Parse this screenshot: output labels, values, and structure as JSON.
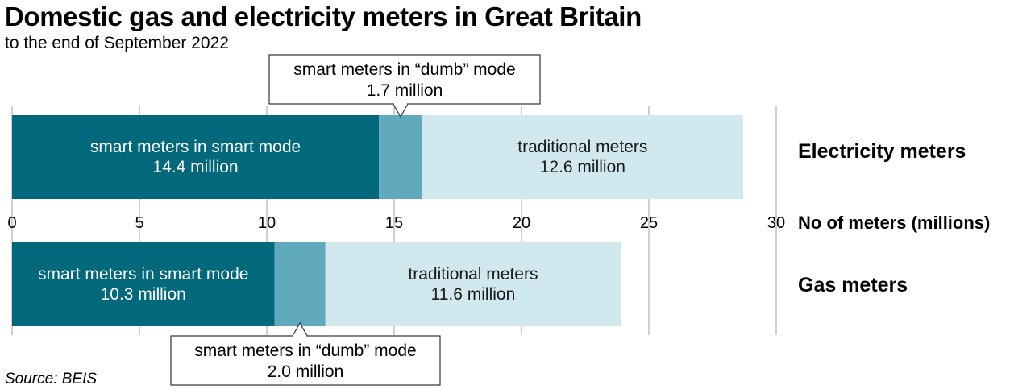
{
  "title": "Domestic gas and electricity meters in Great Britain",
  "subtitle": "to the end of September 2022",
  "source": "Source: BEIS",
  "chart_data": {
    "type": "bar",
    "orientation": "horizontal",
    "stacked": true,
    "x_axis_title": "No of meters (millions)",
    "xlim": [
      0,
      30
    ],
    "ticks": [
      "0",
      "5",
      "10",
      "15",
      "20",
      "25",
      "30"
    ],
    "grid": true,
    "categories": [
      "Electricity meters",
      "Gas meters"
    ],
    "series": [
      {
        "name": "smart meters in smart mode",
        "values": [
          14.4,
          10.3
        ],
        "labels": [
          [
            "smart meters in smart mode",
            "14.4 million"
          ],
          [
            "smart meters in smart mode",
            "10.3 million"
          ]
        ],
        "color": "#02687b"
      },
      {
        "name": "smart meters in “dumb” mode",
        "values": [
          1.7,
          2.0
        ],
        "labels": [
          [
            "smart meters in “dumb” mode",
            "1.7 million"
          ],
          [
            "smart meters in “dumb” mode",
            "2.0 million"
          ]
        ],
        "color": "#61aabe",
        "callout": true
      },
      {
        "name": "traditional meters",
        "values": [
          12.6,
          11.6
        ],
        "labels": [
          [
            "traditional meters",
            "12.6 million"
          ],
          [
            "traditional meters",
            "11.6 million"
          ]
        ],
        "color": "#d1e8ef"
      }
    ]
  }
}
